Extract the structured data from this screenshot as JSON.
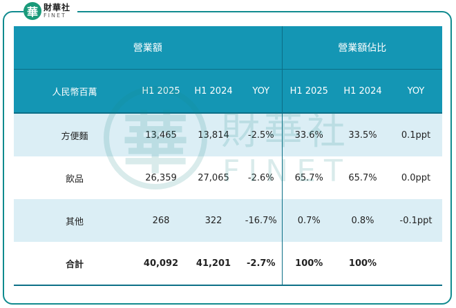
{
  "brand": {
    "seal_char": "華",
    "name_cn": "財華社",
    "name_en": "FINET"
  },
  "table": {
    "group_headers": [
      "營業額",
      "營業額佔比"
    ],
    "columns": [
      "人民幣百萬",
      "H1 2025",
      "H1 2024",
      "YOY",
      "H1 2025",
      "H1 2024",
      "YOY"
    ],
    "rows": [
      {
        "label": "方便麵",
        "cells": [
          "13,465",
          "13,814",
          "-2.5%",
          "33.6%",
          "33.5%",
          "0.1ppt"
        ]
      },
      {
        "label": "飲品",
        "cells": [
          "26,359",
          "27,065",
          "-2.6%",
          "65.7%",
          "65.7%",
          "0.0ppt"
        ]
      },
      {
        "label": "其他",
        "cells": [
          "268",
          "322",
          "-16.7%",
          "0.7%",
          "0.8%",
          "-0.1ppt"
        ]
      },
      {
        "label": "合計",
        "cells": [
          "40,092",
          "41,201",
          "-2.7%",
          "100%",
          "100%",
          ""
        ]
      }
    ]
  },
  "colors": {
    "header_bg": "#1496b4",
    "shade_row_bg": "#dbeef5",
    "frame": "#0f8a8e"
  }
}
